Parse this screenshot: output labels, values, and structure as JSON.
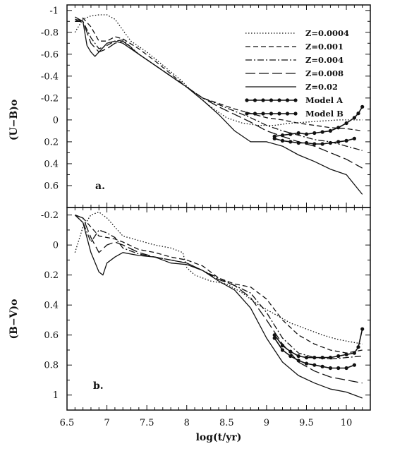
{
  "chart_data": [
    {
      "type": "line",
      "panel_label": "a.",
      "ylabel": "(U−B)o",
      "xlim": [
        6.5,
        10.3
      ],
      "ylim": [
        -1.05,
        0.8
      ],
      "y_inverted": true,
      "yticks": [
        -1,
        -0.8,
        -0.6,
        -0.4,
        -0.2,
        0,
        0.2,
        0.4,
        0.6
      ],
      "ytick_labels": [
        "-1",
        "-0.8",
        "-0.6",
        "-0.4",
        "-0.2",
        "0",
        "0.2",
        "0.4",
        "0.6"
      ],
      "legend_position": "top-right",
      "series": [
        {
          "name": "Z=0.0004",
          "style": "dotted",
          "x": [
            6.6,
            6.7,
            6.8,
            6.9,
            7.0,
            7.1,
            7.2,
            7.3,
            7.5,
            7.7,
            7.9,
            8.1,
            8.3,
            8.5,
            8.7,
            8.9,
            9.1,
            9.3,
            9.5,
            9.7,
            9.9,
            10.1,
            10.2
          ],
          "y": [
            -0.8,
            -0.92,
            -0.95,
            -0.96,
            -0.96,
            -0.92,
            -0.82,
            -0.72,
            -0.62,
            -0.5,
            -0.38,
            -0.24,
            -0.12,
            -0.02,
            0.03,
            0.05,
            0.05,
            0.03,
            0.02,
            0.01,
            0.0,
            0.0,
            0.0
          ]
        },
        {
          "name": "Z=0.001",
          "style": "dashed",
          "x": [
            6.6,
            6.7,
            6.8,
            6.9,
            7.0,
            7.1,
            7.2,
            7.4,
            7.6,
            7.8,
            8.0,
            8.2,
            8.4,
            8.6,
            8.8,
            9.0,
            9.2,
            9.4,
            9.6,
            9.8,
            10.0,
            10.2
          ],
          "y": [
            -0.9,
            -0.93,
            -0.85,
            -0.72,
            -0.72,
            -0.76,
            -0.74,
            -0.65,
            -0.54,
            -0.42,
            -0.3,
            -0.2,
            -0.15,
            -0.1,
            -0.06,
            -0.02,
            0.0,
            0.03,
            0.05,
            0.07,
            0.08,
            0.1
          ]
        },
        {
          "name": "Z=0.004",
          "style": "dashdot",
          "x": [
            6.6,
            6.7,
            6.8,
            6.9,
            7.0,
            7.1,
            7.2,
            7.4,
            7.6,
            7.8,
            8.0,
            8.2,
            8.4,
            8.6,
            8.8,
            9.0,
            9.2,
            9.4,
            9.6,
            9.8,
            10.0,
            10.2
          ],
          "y": [
            -0.9,
            -0.9,
            -0.75,
            -0.65,
            -0.68,
            -0.72,
            -0.73,
            -0.6,
            -0.5,
            -0.4,
            -0.3,
            -0.2,
            -0.14,
            -0.08,
            -0.02,
            0.05,
            0.1,
            0.14,
            0.18,
            0.2,
            0.24,
            0.28
          ]
        },
        {
          "name": "Z=0.008",
          "style": "longdash",
          "x": [
            6.6,
            6.7,
            6.8,
            6.9,
            7.0,
            7.1,
            7.2,
            7.4,
            7.6,
            7.8,
            8.0,
            8.2,
            8.4,
            8.6,
            8.8,
            9.0,
            9.2,
            9.4,
            9.6,
            9.8,
            10.0,
            10.2
          ],
          "y": [
            -0.92,
            -0.9,
            -0.7,
            -0.62,
            -0.65,
            -0.7,
            -0.72,
            -0.6,
            -0.5,
            -0.4,
            -0.3,
            -0.2,
            -0.12,
            -0.05,
            0.02,
            0.1,
            0.15,
            0.2,
            0.24,
            0.3,
            0.36,
            0.44
          ]
        },
        {
          "name": "Z=0.02",
          "style": "solid",
          "x": [
            6.6,
            6.7,
            6.75,
            6.8,
            6.85,
            6.9,
            7.0,
            7.1,
            7.2,
            7.4,
            7.6,
            7.8,
            8.0,
            8.2,
            8.4,
            8.6,
            8.8,
            9.0,
            9.2,
            9.4,
            9.6,
            9.8,
            10.0,
            10.2
          ],
          "y": [
            -0.94,
            -0.9,
            -0.68,
            -0.62,
            -0.58,
            -0.62,
            -0.7,
            -0.72,
            -0.7,
            -0.6,
            -0.5,
            -0.4,
            -0.3,
            -0.18,
            -0.05,
            0.1,
            0.2,
            0.2,
            0.24,
            0.32,
            0.38,
            0.45,
            0.5,
            0.68
          ]
        },
        {
          "name": "Model A",
          "style": "markers",
          "x": [
            9.1,
            9.2,
            9.3,
            9.4,
            9.5,
            9.6,
            9.7,
            9.8,
            9.9,
            10.0,
            10.1,
            10.15,
            10.2
          ],
          "y": [
            0.15,
            0.14,
            0.13,
            0.12,
            0.13,
            0.12,
            0.11,
            0.1,
            0.07,
            0.03,
            -0.02,
            -0.06,
            -0.12
          ]
        },
        {
          "name": "Model B",
          "style": "markers",
          "x": [
            9.1,
            9.2,
            9.3,
            9.4,
            9.5,
            9.6,
            9.7,
            9.8,
            9.9,
            10.0,
            10.1
          ],
          "y": [
            0.17,
            0.19,
            0.2,
            0.21,
            0.21,
            0.22,
            0.22,
            0.21,
            0.2,
            0.19,
            0.17
          ]
        }
      ]
    },
    {
      "type": "line",
      "panel_label": "b.",
      "ylabel": "(B−V)o",
      "xlabel": "log(t/yr)",
      "xlim": [
        6.5,
        10.3
      ],
      "ylim": [
        -0.25,
        1.1
      ],
      "y_inverted": true,
      "xticks": [
        6.5,
        7,
        7.5,
        8,
        8.5,
        9,
        9.5,
        10
      ],
      "xtick_labels": [
        "6.5",
        "7",
        "7.5",
        "8",
        "8.5",
        "9",
        "9.5",
        "10"
      ],
      "yticks": [
        -0.2,
        0,
        0.2,
        0.4,
        0.6,
        0.8,
        1
      ],
      "ytick_labels": [
        "-0.2",
        "0",
        "0.2",
        "0.4",
        "0.6",
        "0.8",
        "1"
      ],
      "series": [
        {
          "name": "Z=0.0004",
          "style": "dotted",
          "x": [
            6.6,
            6.7,
            6.8,
            6.9,
            7.0,
            7.1,
            7.2,
            7.4,
            7.6,
            7.8,
            7.95,
            8.0,
            8.1,
            8.2,
            8.3,
            8.5,
            8.7,
            8.9,
            9.1,
            9.3,
            9.5,
            9.7,
            9.9,
            10.1,
            10.2
          ],
          "y": [
            0.05,
            -0.12,
            -0.2,
            -0.22,
            -0.18,
            -0.12,
            -0.06,
            -0.03,
            0.0,
            0.02,
            0.05,
            0.15,
            0.2,
            0.22,
            0.24,
            0.26,
            0.32,
            0.4,
            0.46,
            0.52,
            0.56,
            0.6,
            0.63,
            0.65,
            0.66
          ]
        },
        {
          "name": "Z=0.001",
          "style": "dashed",
          "x": [
            6.6,
            6.7,
            6.8,
            6.9,
            7.0,
            7.1,
            7.2,
            7.4,
            7.6,
            7.8,
            8.0,
            8.2,
            8.4,
            8.6,
            8.8,
            9.0,
            9.2,
            9.4,
            9.6,
            9.8,
            10.0,
            10.2
          ],
          "y": [
            -0.2,
            -0.18,
            -0.12,
            -0.06,
            -0.05,
            -0.04,
            -0.02,
            0.03,
            0.05,
            0.08,
            0.1,
            0.14,
            0.22,
            0.26,
            0.28,
            0.36,
            0.5,
            0.6,
            0.66,
            0.7,
            0.72,
            0.7
          ]
        },
        {
          "name": "Z=0.004",
          "style": "dashdot",
          "x": [
            6.6,
            6.7,
            6.8,
            6.9,
            7.0,
            7.1,
            7.2,
            7.4,
            7.6,
            7.8,
            8.0,
            8.2,
            8.4,
            8.6,
            8.8,
            9.0,
            9.2,
            9.4,
            9.6,
            9.8,
            10.0,
            10.2
          ],
          "y": [
            -0.2,
            -0.15,
            -0.02,
            -0.1,
            -0.08,
            -0.05,
            0.02,
            0.06,
            0.08,
            0.1,
            0.12,
            0.17,
            0.22,
            0.27,
            0.32,
            0.45,
            0.62,
            0.72,
            0.75,
            0.76,
            0.75,
            0.74
          ]
        },
        {
          "name": "Z=0.008",
          "style": "longdash",
          "x": [
            6.6,
            6.7,
            6.8,
            6.9,
            7.0,
            7.1,
            7.2,
            7.4,
            7.6,
            7.8,
            8.0,
            8.2,
            8.4,
            8.6,
            8.8,
            9.0,
            9.2,
            9.4,
            9.6,
            9.8,
            10.0,
            10.2
          ],
          "y": [
            -0.2,
            -0.18,
            -0.05,
            0.05,
            0.0,
            -0.02,
            0.0,
            0.05,
            0.08,
            0.1,
            0.12,
            0.17,
            0.23,
            0.27,
            0.35,
            0.5,
            0.66,
            0.78,
            0.84,
            0.88,
            0.9,
            0.92
          ]
        },
        {
          "name": "Z=0.02",
          "style": "solid",
          "x": [
            6.6,
            6.7,
            6.8,
            6.9,
            6.95,
            7.0,
            7.1,
            7.2,
            7.4,
            7.6,
            7.8,
            8.0,
            8.2,
            8.4,
            8.6,
            8.8,
            9.0,
            9.2,
            9.4,
            9.6,
            9.8,
            10.0,
            10.2
          ],
          "y": [
            -0.2,
            -0.15,
            0.05,
            0.18,
            0.2,
            0.12,
            0.08,
            0.05,
            0.07,
            0.08,
            0.12,
            0.13,
            0.17,
            0.24,
            0.3,
            0.42,
            0.62,
            0.78,
            0.87,
            0.92,
            0.96,
            0.98,
            1.02
          ]
        },
        {
          "name": "Model A",
          "style": "markers",
          "x": [
            9.1,
            9.2,
            9.3,
            9.4,
            9.5,
            9.6,
            9.7,
            9.8,
            9.9,
            10.0,
            10.1,
            10.15,
            10.2
          ],
          "y": [
            0.6,
            0.67,
            0.71,
            0.74,
            0.75,
            0.75,
            0.75,
            0.75,
            0.74,
            0.73,
            0.72,
            0.68,
            0.56
          ]
        },
        {
          "name": "Model B",
          "style": "markers",
          "x": [
            9.1,
            9.2,
            9.3,
            9.4,
            9.5,
            9.6,
            9.7,
            9.8,
            9.9,
            10.0,
            10.1
          ],
          "y": [
            0.62,
            0.7,
            0.74,
            0.77,
            0.79,
            0.8,
            0.81,
            0.82,
            0.82,
            0.82,
            0.8
          ]
        }
      ]
    }
  ]
}
